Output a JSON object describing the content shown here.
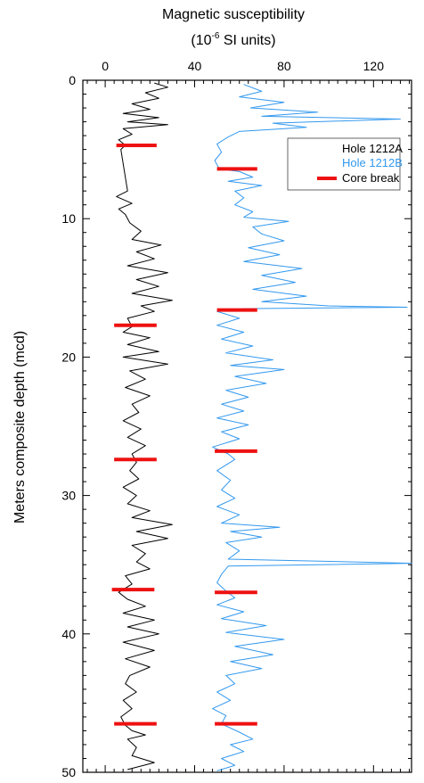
{
  "chart_data": {
    "type": "line",
    "title_line1": "Magnetic susceptibility",
    "title_unit_prefix": "(10",
    "title_unit_exp": "-6",
    "title_unit_suffix": " SI units)",
    "ylabel": "Meters composite depth (mcd)",
    "xlim": [
      -10,
      137
    ],
    "ylim": [
      0,
      50
    ],
    "x_inverted": false,
    "y_inverted": true,
    "x_ticks": [
      0,
      40,
      80,
      120
    ],
    "x_tick_labels": [
      "0",
      "40",
      "80",
      "120"
    ],
    "y_ticks": [
      0,
      10,
      20,
      30,
      40,
      50
    ],
    "y_tick_labels": [
      "0",
      "10",
      "20",
      "30",
      "40",
      "50"
    ],
    "legend_position": "top-right",
    "colors": {
      "hole_a": "#000000",
      "hole_b": "#3399ee",
      "core_break": "#ee1111"
    },
    "series": [
      {
        "name": "Hole 1212A",
        "color": "#000000",
        "points": [
          [
            22,
            0.2
          ],
          [
            28,
            0.5
          ],
          [
            18,
            0.9
          ],
          [
            24,
            1.3
          ],
          [
            12,
            1.7
          ],
          [
            20,
            2.1
          ],
          [
            8,
            2.4
          ],
          [
            24,
            2.7
          ],
          [
            10,
            3.0
          ],
          [
            28,
            3.2
          ],
          [
            8,
            3.5
          ],
          [
            12,
            3.9
          ],
          [
            6,
            4.3
          ],
          [
            9,
            4.7
          ],
          [
            7,
            5.0
          ],
          [
            10,
            8.0
          ],
          [
            5,
            8.4
          ],
          [
            12,
            8.9
          ],
          [
            6,
            9.3
          ],
          [
            9,
            9.7
          ],
          [
            11,
            10.3
          ],
          [
            16,
            10.9
          ],
          [
            12,
            11.5
          ],
          [
            25,
            11.9
          ],
          [
            14,
            12.4
          ],
          [
            22,
            12.9
          ],
          [
            10,
            13.4
          ],
          [
            28,
            13.9
          ],
          [
            14,
            14.4
          ],
          [
            24,
            14.9
          ],
          [
            12,
            15.4
          ],
          [
            30,
            15.9
          ],
          [
            16,
            16.3
          ],
          [
            22,
            16.7
          ],
          [
            10,
            17.2
          ],
          [
            12,
            17.8
          ],
          [
            8,
            18.2
          ],
          [
            20,
            18.6
          ],
          [
            10,
            19.1
          ],
          [
            24,
            19.6
          ],
          [
            8,
            20.0
          ],
          [
            28,
            20.5
          ],
          [
            11,
            21.0
          ],
          [
            18,
            21.6
          ],
          [
            9,
            22.2
          ],
          [
            20,
            22.8
          ],
          [
            12,
            23.4
          ],
          [
            15,
            24.0
          ],
          [
            8,
            24.6
          ],
          [
            16,
            25.2
          ],
          [
            10,
            25.8
          ],
          [
            18,
            26.4
          ],
          [
            12,
            27.0
          ],
          [
            14,
            27.6
          ],
          [
            11,
            28.2
          ],
          [
            15,
            28.8
          ],
          [
            8,
            29.4
          ],
          [
            14,
            30.0
          ],
          [
            10,
            30.6
          ],
          [
            20,
            31.1
          ],
          [
            12,
            31.6
          ],
          [
            30,
            32.1
          ],
          [
            14,
            32.6
          ],
          [
            28,
            33.1
          ],
          [
            12,
            33.6
          ],
          [
            18,
            34.2
          ],
          [
            14,
            34.8
          ],
          [
            20,
            35.3
          ],
          [
            9,
            35.8
          ],
          [
            12,
            36.4
          ],
          [
            6,
            37.0
          ],
          [
            10,
            37.5
          ],
          [
            18,
            38.0
          ],
          [
            8,
            38.5
          ],
          [
            22,
            39.0
          ],
          [
            10,
            39.5
          ],
          [
            24,
            40.0
          ],
          [
            8,
            40.6
          ],
          [
            22,
            41.2
          ],
          [
            9,
            41.8
          ],
          [
            20,
            42.4
          ],
          [
            11,
            43.0
          ],
          [
            9,
            43.6
          ],
          [
            14,
            44.2
          ],
          [
            8,
            44.8
          ],
          [
            12,
            45.4
          ],
          [
            7,
            46.0
          ],
          [
            9,
            46.6
          ],
          [
            12,
            47.0
          ],
          [
            18,
            47.3
          ],
          [
            10,
            47.6
          ],
          [
            14,
            48.2
          ],
          [
            12,
            48.8
          ],
          [
            22,
            49.3
          ],
          [
            10,
            49.8
          ]
        ]
      },
      {
        "name": "Hole 1212B",
        "color": "#3399ee",
        "points": [
          [
            62,
            0.3
          ],
          [
            70,
            0.8
          ],
          [
            60,
            1.2
          ],
          [
            80,
            1.6
          ],
          [
            65,
            2.0
          ],
          [
            95,
            2.3
          ],
          [
            70,
            2.6
          ],
          [
            132,
            2.8
          ],
          [
            75,
            3.1
          ],
          [
            90,
            3.4
          ],
          [
            60,
            3.7
          ],
          [
            55,
            4.1
          ],
          [
            50,
            4.6
          ],
          [
            52,
            5.2
          ],
          [
            49,
            5.8
          ],
          [
            51,
            6.4
          ],
          [
            60,
            6.6
          ],
          [
            66,
            7.0
          ],
          [
            55,
            7.3
          ],
          [
            70,
            7.6
          ],
          [
            58,
            8.0
          ],
          [
            62,
            8.5
          ],
          [
            58,
            9.0
          ],
          [
            66,
            9.5
          ],
          [
            62,
            9.9
          ],
          [
            82,
            10.2
          ],
          [
            66,
            10.6
          ],
          [
            70,
            11.1
          ],
          [
            80,
            11.6
          ],
          [
            64,
            12.1
          ],
          [
            78,
            12.6
          ],
          [
            62,
            13.1
          ],
          [
            88,
            13.6
          ],
          [
            70,
            14.1
          ],
          [
            85,
            14.6
          ],
          [
            66,
            15.1
          ],
          [
            90,
            15.6
          ],
          [
            70,
            16.0
          ],
          [
            100,
            16.3
          ],
          [
            135,
            16.4
          ],
          [
            62,
            16.5
          ],
          [
            50,
            16.7
          ],
          [
            60,
            17.2
          ],
          [
            50,
            17.7
          ],
          [
            62,
            18.2
          ],
          [
            52,
            18.7
          ],
          [
            66,
            19.2
          ],
          [
            54,
            19.7
          ],
          [
            75,
            20.2
          ],
          [
            56,
            20.6
          ],
          [
            80,
            20.9
          ],
          [
            58,
            21.4
          ],
          [
            72,
            21.9
          ],
          [
            54,
            22.4
          ],
          [
            64,
            22.9
          ],
          [
            52,
            23.4
          ],
          [
            62,
            23.9
          ],
          [
            50,
            24.4
          ],
          [
            64,
            24.9
          ],
          [
            52,
            25.4
          ],
          [
            60,
            25.9
          ],
          [
            48,
            26.5
          ],
          [
            55,
            27.0
          ],
          [
            58,
            27.4
          ],
          [
            50,
            28.2
          ],
          [
            56,
            28.9
          ],
          [
            52,
            29.6
          ],
          [
            58,
            30.2
          ],
          [
            50,
            30.8
          ],
          [
            60,
            31.4
          ],
          [
            52,
            32.0
          ],
          [
            78,
            32.3
          ],
          [
            56,
            32.6
          ],
          [
            70,
            33.0
          ],
          [
            54,
            33.4
          ],
          [
            60,
            34.0
          ],
          [
            55,
            34.6
          ],
          [
            137,
            34.9
          ],
          [
            55,
            35.1
          ],
          [
            52,
            35.7
          ],
          [
            50,
            36.3
          ],
          [
            54,
            36.9
          ],
          [
            58,
            37.4
          ],
          [
            50,
            37.9
          ],
          [
            62,
            38.4
          ],
          [
            52,
            38.9
          ],
          [
            72,
            39.4
          ],
          [
            54,
            39.9
          ],
          [
            80,
            40.4
          ],
          [
            58,
            40.9
          ],
          [
            75,
            41.5
          ],
          [
            56,
            42.0
          ],
          [
            70,
            42.5
          ],
          [
            54,
            43.0
          ],
          [
            58,
            43.6
          ],
          [
            50,
            44.2
          ],
          [
            56,
            44.8
          ],
          [
            48,
            45.4
          ],
          [
            54,
            45.9
          ],
          [
            52,
            46.5
          ],
          [
            60,
            47.1
          ],
          [
            66,
            47.6
          ],
          [
            56,
            48.0
          ],
          [
            62,
            48.5
          ],
          [
            52,
            49.0
          ],
          [
            58,
            49.5
          ],
          [
            50,
            49.9
          ]
        ]
      }
    ],
    "core_breaks": {
      "name": "Core break",
      "color": "#ee1111",
      "segments": [
        {
          "x1": 5,
          "x2": 23,
          "y": 4.7
        },
        {
          "x1": 50,
          "x2": 68,
          "y": 6.4
        },
        {
          "x1": 50,
          "x2": 68,
          "y": 16.6
        },
        {
          "x1": 4,
          "x2": 23,
          "y": 17.7
        },
        {
          "x1": 4,
          "x2": 23,
          "y": 27.4
        },
        {
          "x1": 49,
          "x2": 68,
          "y": 26.8
        },
        {
          "x1": 3,
          "x2": 22,
          "y": 36.8
        },
        {
          "x1": 49,
          "x2": 68,
          "y": 37.0
        },
        {
          "x1": 4,
          "x2": 23,
          "y": 46.5
        },
        {
          "x1": 49,
          "x2": 68,
          "y": 46.5
        }
      ]
    }
  }
}
